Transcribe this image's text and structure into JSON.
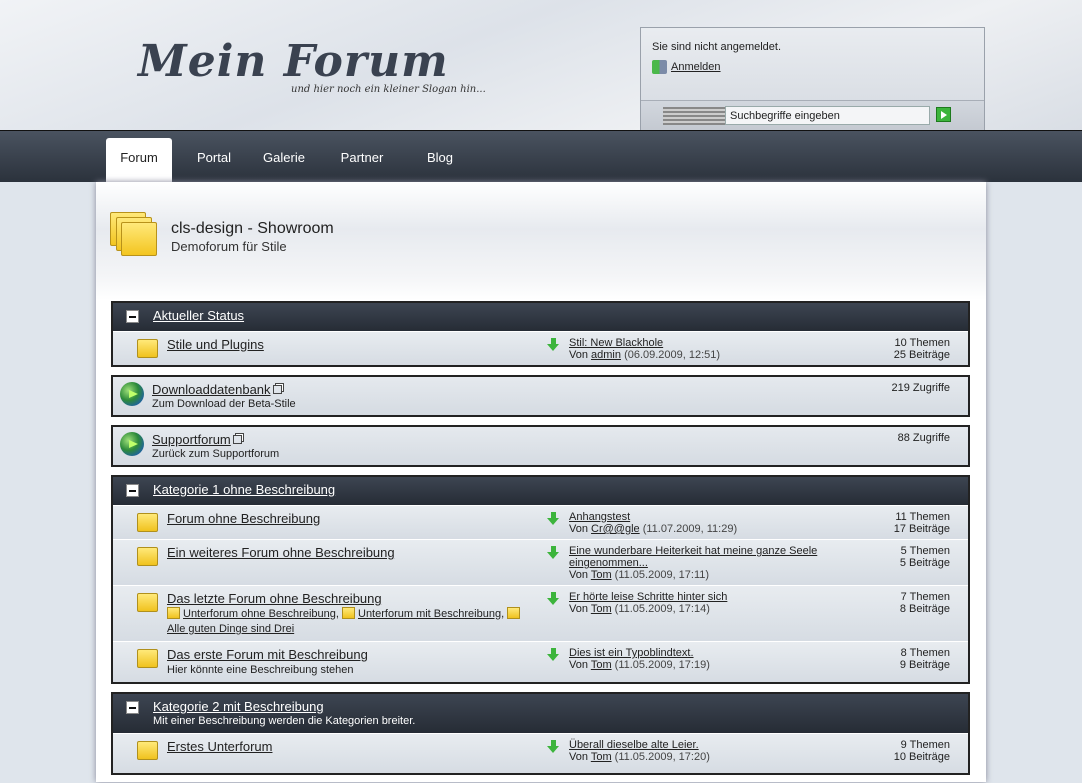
{
  "header": {
    "logo": "Mein Forum",
    "slogan": "und hier noch ein kleiner Slogan hin...",
    "login_status": "Sie sind nicht angemeldet.",
    "login_link": "Anmelden",
    "search_placeholder": "Suchbegriffe eingeben"
  },
  "nav": {
    "tabs": [
      {
        "label": "Forum",
        "active": true
      },
      {
        "label": "Portal"
      },
      {
        "label": "Galerie"
      },
      {
        "label": "Partner"
      },
      {
        "label": "Blog"
      }
    ]
  },
  "page": {
    "title": "cls-design - Showroom",
    "subtitle": "Demoforum für Stile"
  },
  "sections": [
    {
      "type": "category",
      "title": "Aktueller Status",
      "description": "",
      "boards": [
        {
          "name": "Stile und Plugins",
          "last_post": "Stil: New Blackhole",
          "by_prefix": "Von",
          "author": "admin",
          "date": "(06.09.2009, 12:51)",
          "threads": "10 Themen",
          "posts": "25 Beiträge"
        }
      ]
    },
    {
      "type": "link",
      "name": "Downloaddatenbank",
      "description": "Zum Download der Beta-Stile",
      "hits": "219 Zugriffe"
    },
    {
      "type": "link",
      "name": "Supportforum",
      "description": "Zurück zum Supportforum",
      "hits": "88 Zugriffe"
    },
    {
      "type": "category",
      "title": "Kategorie 1 ohne Beschreibung",
      "description": "",
      "boards": [
        {
          "name": "Forum ohne Beschreibung",
          "last_post": "Anhangstest",
          "by_prefix": "Von",
          "author": "Cr@@gle",
          "date": "(11.07.2009, 11:29)",
          "threads": "11 Themen",
          "posts": "17 Beiträge"
        },
        {
          "name": "Ein weiteres Forum ohne Beschreibung",
          "last_post": "Eine wunderbare Heiterkeit hat meine ganze Seele eingenommen...",
          "by_prefix": "Von",
          "author": "Tom",
          "date": "(11.05.2009, 17:11)",
          "threads": "5 Themen",
          "posts": "5 Beiträge"
        },
        {
          "name": "Das letzte Forum ohne Beschreibung",
          "subforums": [
            "Unterforum ohne Beschreibung",
            "Unterforum mit Beschreibung",
            "Alle guten Dinge sind Drei"
          ],
          "last_post": "Er hörte leise Schritte hinter sich",
          "by_prefix": "Von",
          "author": "Tom",
          "date": "(11.05.2009, 17:14)",
          "threads": "7 Themen",
          "posts": "8 Beiträge"
        },
        {
          "name": "Das erste Forum mit Beschreibung",
          "description": "Hier könnte eine Beschreibung stehen",
          "last_post": "Dies ist ein Typoblindtext.",
          "by_prefix": "Von",
          "author": "Tom",
          "date": "(11.05.2009, 17:19)",
          "threads": "8 Themen",
          "posts": "9 Beiträge"
        }
      ]
    },
    {
      "type": "category",
      "title": "Kategorie 2 mit Beschreibung",
      "description": "Mit einer Beschreibung werden die Kategorien breiter.",
      "boards": [
        {
          "name": "Erstes Unterforum",
          "last_post": "Überall dieselbe alte Leier.",
          "by_prefix": "Von",
          "author": "Tom",
          "date": "(11.05.2009, 17:20)",
          "threads": "9 Themen",
          "posts": "10 Beiträge"
        }
      ]
    }
  ]
}
